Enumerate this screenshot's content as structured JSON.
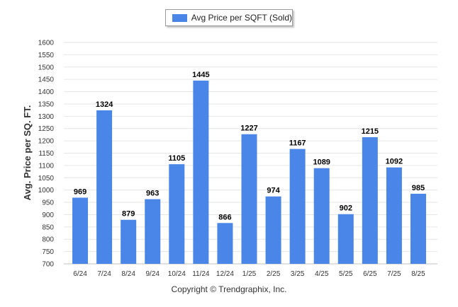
{
  "legend": {
    "label": "Avg Price per SQFT (Sold)"
  },
  "footer": {
    "copyright": "Copyright © Trendgraphix, Inc."
  },
  "colors": {
    "bar": "#4a86e8",
    "grid": "#e6e6e6",
    "axis": "#c0c0c0"
  },
  "chart_data": {
    "type": "bar",
    "title": "",
    "xlabel": "",
    "ylabel": "Avg. Price per SQ. FT.",
    "ylim": [
      700,
      1600
    ],
    "yticks": [
      700,
      750,
      800,
      850,
      900,
      950,
      1000,
      1050,
      1100,
      1150,
      1200,
      1250,
      1300,
      1350,
      1400,
      1450,
      1500,
      1550,
      1600
    ],
    "grid": true,
    "legend_position": "top-center",
    "categories": [
      "6/24",
      "7/24",
      "8/24",
      "9/24",
      "10/24",
      "11/24",
      "12/24",
      "1/25",
      "2/25",
      "3/25",
      "4/25",
      "5/25",
      "6/25",
      "7/25",
      "8/25"
    ],
    "series": [
      {
        "name": "Avg Price per SQFT (Sold)",
        "values": [
          969,
          1324,
          879,
          963,
          1105,
          1445,
          866,
          1227,
          974,
          1167,
          1089,
          902,
          1215,
          1092,
          985
        ]
      }
    ]
  }
}
